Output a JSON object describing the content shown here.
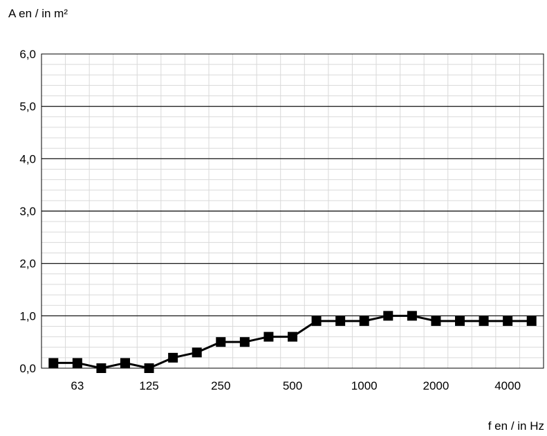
{
  "chart_data": {
    "type": "line",
    "ylabel": "A en / in m²",
    "xlabel": "f en / in Hz",
    "ylim": [
      0,
      6
    ],
    "y_ticks": [
      "0,0",
      "1,0",
      "2,0",
      "3,0",
      "4,0",
      "5,0",
      "6,0"
    ],
    "x_tick_labels": [
      {
        "index": 1,
        "label": "63"
      },
      {
        "index": 4,
        "label": "125"
      },
      {
        "index": 7,
        "label": "250"
      },
      {
        "index": 10,
        "label": "500"
      },
      {
        "index": 13,
        "label": "1000"
      },
      {
        "index": 16,
        "label": "2000"
      },
      {
        "index": 19,
        "label": "4000"
      }
    ],
    "categories": [
      "50",
      "63",
      "80",
      "100",
      "125",
      "160",
      "200",
      "250",
      "315",
      "400",
      "500",
      "630",
      "800",
      "1000",
      "1250",
      "1600",
      "2000",
      "2500",
      "3150",
      "4000",
      "5000"
    ],
    "series": [
      {
        "values": [
          0.1,
          0.1,
          0.0,
          0.1,
          0.0,
          0.2,
          0.3,
          0.5,
          0.5,
          0.6,
          0.6,
          0.9,
          0.9,
          0.9,
          1.0,
          1.0,
          0.9,
          0.9,
          0.9,
          0.9,
          0.9
        ],
        "color": "#000000",
        "marker": "square"
      }
    ],
    "grid": true,
    "minor_grid_color": "#d9d9d9",
    "major_grid_color": "#000000"
  }
}
